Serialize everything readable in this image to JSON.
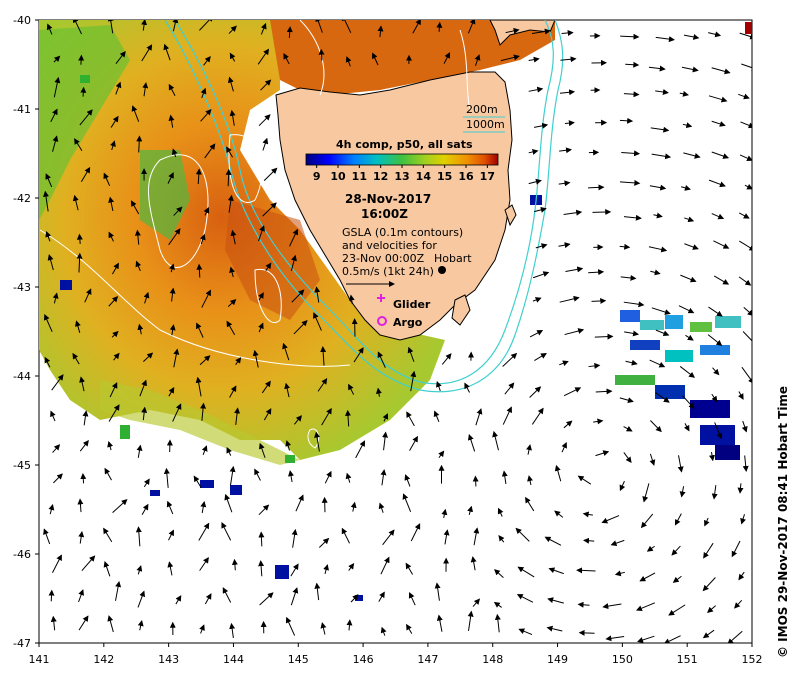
{
  "map": {
    "xticks": [
      "141",
      "142",
      "143",
      "144",
      "145",
      "146",
      "147",
      "148",
      "149",
      "150",
      "151",
      "152"
    ],
    "yticks": [
      "-40",
      "-41",
      "-42",
      "-43",
      "-44",
      "-45",
      "-46",
      "-47"
    ],
    "xlim": [
      141,
      152
    ],
    "ylim": [
      -47,
      -40
    ]
  },
  "legend": {
    "contour_200": "200m",
    "contour_1000": "1000m",
    "colorbar_title": "4h comp, p50, all sats",
    "colorbar_ticks": [
      "9",
      "10",
      "11",
      "12",
      "13",
      "14",
      "15",
      "16",
      "17"
    ],
    "colorbar_range": [
      8.5,
      17.5
    ]
  },
  "annotation": {
    "date": "28-Nov-2017",
    "time": "16:00Z",
    "gsla_1": "GSLA (0.1m contours)",
    "gsla_2": "and velocities for",
    "gsla_3": "23-Nov 00:00Z",
    "scale": "0.5m/s (1kt 24h)",
    "glider": "Glider",
    "argo": "Argo"
  },
  "places": {
    "hobart": "Hobart"
  },
  "credit": "© IMOS 29-Nov-2017 08:41 Hobart Time",
  "colors": {
    "land": "#f8c8a0",
    "coast": "#000000",
    "isobath": "#40d0d0",
    "contour": "#ffffff",
    "arrow": "#000000",
    "glider": "#e020e0",
    "argo": "#e020e0"
  },
  "colormap": [
    "#000080",
    "#0000ff",
    "#0080ff",
    "#00c0c0",
    "#40c040",
    "#a0d020",
    "#e0d000",
    "#f09000",
    "#e05000",
    "#a00000"
  ],
  "icons": {
    "glider": "plus-marker",
    "argo": "circle-marker",
    "hobart": "dot-marker"
  }
}
